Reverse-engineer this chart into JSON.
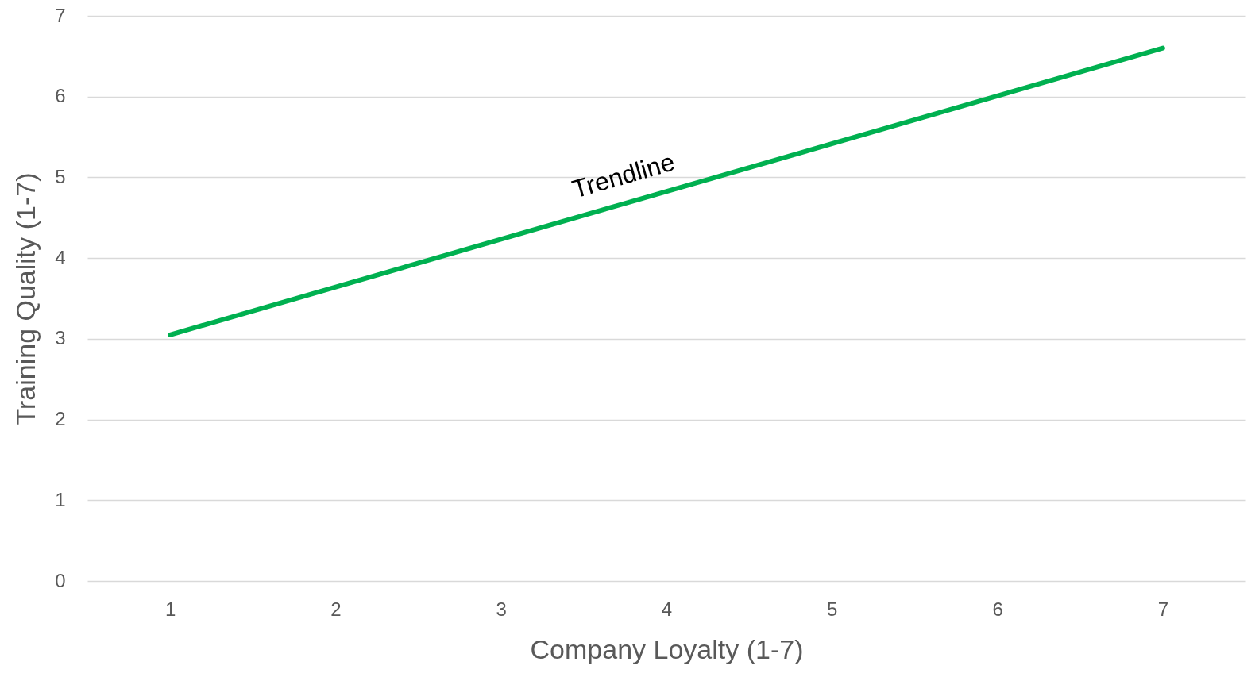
{
  "chart_data": {
    "type": "line",
    "xlabel": "Company Loyalty (1-7)",
    "ylabel": "Training Quality (1-7)",
    "x": [
      1,
      7
    ],
    "series": [
      {
        "color": "#00b050",
        "values": [
          3.05,
          6.6
        ]
      }
    ],
    "xlim": [
      0.5,
      7.5
    ],
    "xticks": [
      1,
      2,
      3,
      4,
      5,
      6,
      7
    ],
    "ylim": [
      0,
      7
    ],
    "yticks": [
      0,
      1,
      2,
      3,
      4,
      5,
      6,
      7
    ],
    "grid": "y",
    "annotations": [
      "Trendline"
    ]
  }
}
